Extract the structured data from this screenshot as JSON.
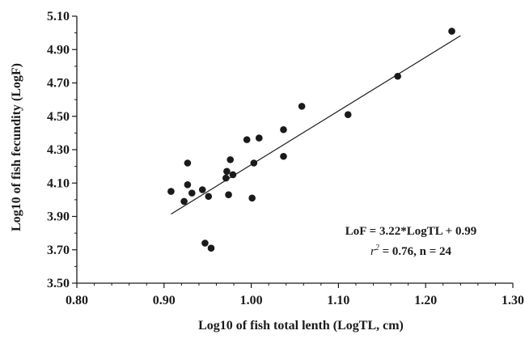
{
  "chart_data": {
    "type": "scatter",
    "xlabel": "Log10 of fish total lenth (LogTL, cm)",
    "ylabel": "Log10 of fish fecundity (LogF)",
    "xlim": [
      0.8,
      1.3
    ],
    "ylim": [
      3.5,
      5.1
    ],
    "x_ticks": [
      "0.80",
      "0.90",
      "1.00",
      "1.10",
      "1.20",
      "1.30"
    ],
    "y_ticks": [
      "3.50",
      "3.70",
      "3.90",
      "4.10",
      "4.30",
      "4.50",
      "4.70",
      "4.90",
      "5.10"
    ],
    "points": [
      {
        "x": 0.908,
        "y": 4.05
      },
      {
        "x": 0.923,
        "y": 3.99
      },
      {
        "x": 0.927,
        "y": 4.22
      },
      {
        "x": 0.927,
        "y": 4.09
      },
      {
        "x": 0.932,
        "y": 4.04
      },
      {
        "x": 0.944,
        "y": 4.06
      },
      {
        "x": 0.947,
        "y": 3.74
      },
      {
        "x": 0.951,
        "y": 4.02
      },
      {
        "x": 0.954,
        "y": 3.71
      },
      {
        "x": 0.971,
        "y": 4.13
      },
      {
        "x": 0.972,
        "y": 4.17
      },
      {
        "x": 0.974,
        "y": 4.03
      },
      {
        "x": 0.976,
        "y": 4.24
      },
      {
        "x": 0.979,
        "y": 4.15
      },
      {
        "x": 0.995,
        "y": 4.36
      },
      {
        "x": 1.001,
        "y": 4.01
      },
      {
        "x": 1.003,
        "y": 4.22
      },
      {
        "x": 1.009,
        "y": 4.37
      },
      {
        "x": 1.037,
        "y": 4.26
      },
      {
        "x": 1.037,
        "y": 4.42
      },
      {
        "x": 1.058,
        "y": 4.56
      },
      {
        "x": 1.111,
        "y": 4.51
      },
      {
        "x": 1.168,
        "y": 4.74
      },
      {
        "x": 1.23,
        "y": 5.01
      }
    ],
    "trendline": {
      "slope": 3.22,
      "intercept": 0.99,
      "x_start": 0.908,
      "x_end": 1.24
    },
    "annotation": {
      "line1": "LoF = 3.22*LogTL + 0.99",
      "r_symbol": "r",
      "r_exponent": "2",
      "line2_rest": " = 0.76, n = 24"
    },
    "grid": false,
    "colors": {
      "points": "#1a1a1a",
      "line": "#1a1a1a",
      "axis": "#1a1a1a"
    }
  }
}
